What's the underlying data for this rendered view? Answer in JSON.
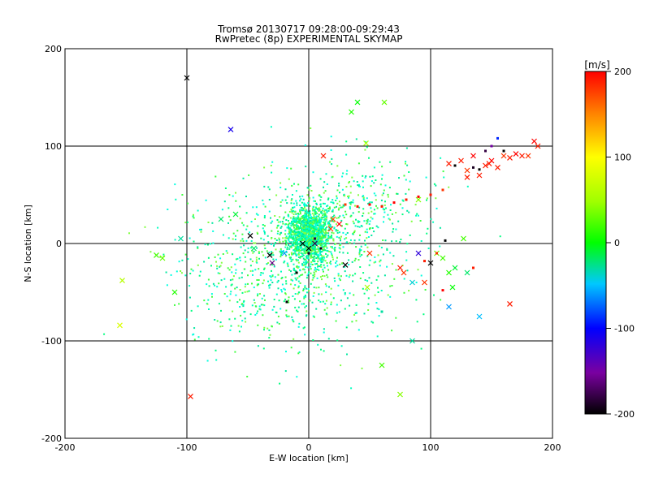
{
  "chart_data": {
    "type": "scatter",
    "title": "Tromsø 20130717 09:28:00-09:29:43",
    "subtitle": "RwPretec (8p) EXPERIMENTAL SKYMAP",
    "xlabel": "E-W location [km]",
    "ylabel": "N-S location [km]",
    "xlim": [
      -200,
      200
    ],
    "ylim": [
      -200,
      200
    ],
    "xticks": [
      "-200",
      "-100",
      "0",
      "100",
      "200"
    ],
    "yticks": [
      "-200",
      "-100",
      "0",
      "100",
      "200"
    ],
    "grid": true,
    "colorbar": {
      "title": "[m/s]",
      "range": [
        -200,
        200
      ],
      "ticks": [
        "-200",
        "-100",
        "0",
        "100",
        "200"
      ],
      "colormap": "black-purple-blue-cyan-green-yellow-red"
    },
    "x_markers": [
      [
        -100,
        170,
        -200
      ],
      [
        -64,
        117,
        -110
      ],
      [
        -153,
        -38,
        60
      ],
      [
        -155,
        -84,
        80
      ],
      [
        -120,
        -15,
        30
      ],
      [
        -125,
        -12,
        20
      ],
      [
        -105,
        5,
        -30
      ],
      [
        -110,
        -50,
        10
      ],
      [
        -97,
        -157,
        190
      ],
      [
        -72,
        25,
        -20
      ],
      [
        -60,
        30,
        -10
      ],
      [
        -48,
        8,
        -200
      ],
      [
        -45,
        -5,
        -20
      ],
      [
        -32,
        -12,
        -200
      ],
      [
        -30,
        -20,
        -160
      ],
      [
        -20,
        -10,
        -60
      ],
      [
        -5,
        0,
        -200
      ],
      [
        0,
        -5,
        -200
      ],
      [
        5,
        0,
        -180
      ],
      [
        12,
        90,
        190
      ],
      [
        18,
        15,
        180
      ],
      [
        20,
        25,
        170
      ],
      [
        25,
        20,
        200
      ],
      [
        30,
        -22,
        -200
      ],
      [
        48,
        -45,
        50
      ],
      [
        50,
        -10,
        180
      ],
      [
        60,
        -125,
        20
      ],
      [
        75,
        -155,
        40
      ],
      [
        40,
        145,
        0
      ],
      [
        35,
        135,
        10
      ],
      [
        62,
        145,
        30
      ],
      [
        47,
        103,
        50
      ],
      [
        85,
        -100,
        -30
      ],
      [
        90,
        -10,
        -120
      ],
      [
        95,
        -40,
        180
      ],
      [
        100,
        -20,
        -200
      ],
      [
        85,
        -40,
        -40
      ],
      [
        75,
        -25,
        190
      ],
      [
        78,
        -30,
        180
      ],
      [
        105,
        -10,
        30
      ],
      [
        110,
        -15,
        20
      ],
      [
        115,
        -30,
        10
      ],
      [
        118,
        -45,
        0
      ],
      [
        120,
        -25,
        -10
      ],
      [
        115,
        -65,
        -60
      ],
      [
        130,
        -30,
        -20
      ],
      [
        140,
        -75,
        -50
      ],
      [
        165,
        -62,
        190
      ],
      [
        115,
        82,
        190
      ],
      [
        125,
        85,
        190
      ],
      [
        130,
        75,
        180
      ],
      [
        135,
        90,
        200
      ],
      [
        140,
        70,
        190
      ],
      [
        145,
        80,
        190
      ],
      [
        150,
        85,
        200
      ],
      [
        155,
        78,
        190
      ],
      [
        160,
        90,
        180
      ],
      [
        165,
        88,
        190
      ],
      [
        170,
        92,
        200
      ],
      [
        175,
        90,
        190
      ],
      [
        180,
        90,
        180
      ],
      [
        185,
        105,
        200
      ],
      [
        188,
        100,
        190
      ],
      [
        130,
        68,
        190
      ],
      [
        148,
        82,
        190
      ],
      [
        127,
        5,
        20
      ],
      [
        90,
        45,
        40
      ]
    ],
    "dot_markers": [
      [
        30,
        40,
        180
      ],
      [
        40,
        38,
        190
      ],
      [
        50,
        40,
        200
      ],
      [
        60,
        38,
        190
      ],
      [
        70,
        42,
        200
      ],
      [
        80,
        45,
        190
      ],
      [
        90,
        48,
        200
      ],
      [
        100,
        50,
        190
      ],
      [
        110,
        55,
        180
      ],
      [
        95,
        -18,
        190
      ],
      [
        105,
        -10,
        180
      ],
      [
        110,
        -48,
        200
      ],
      [
        112,
        3,
        -200
      ],
      [
        120,
        80,
        -200
      ],
      [
        135,
        78,
        -190
      ],
      [
        140,
        76,
        -200
      ],
      [
        150,
        100,
        -150
      ],
      [
        155,
        108,
        -90
      ],
      [
        60,
        -70,
        -30
      ],
      [
        -18,
        -60,
        -200
      ],
      [
        -10,
        -30,
        -200
      ],
      [
        0,
        -10,
        -190
      ],
      [
        5,
        5,
        -180
      ],
      [
        10,
        -5,
        -200
      ],
      [
        135,
        -25,
        190
      ],
      [
        160,
        95,
        -200
      ],
      [
        145,
        95,
        -180
      ]
    ]
  }
}
